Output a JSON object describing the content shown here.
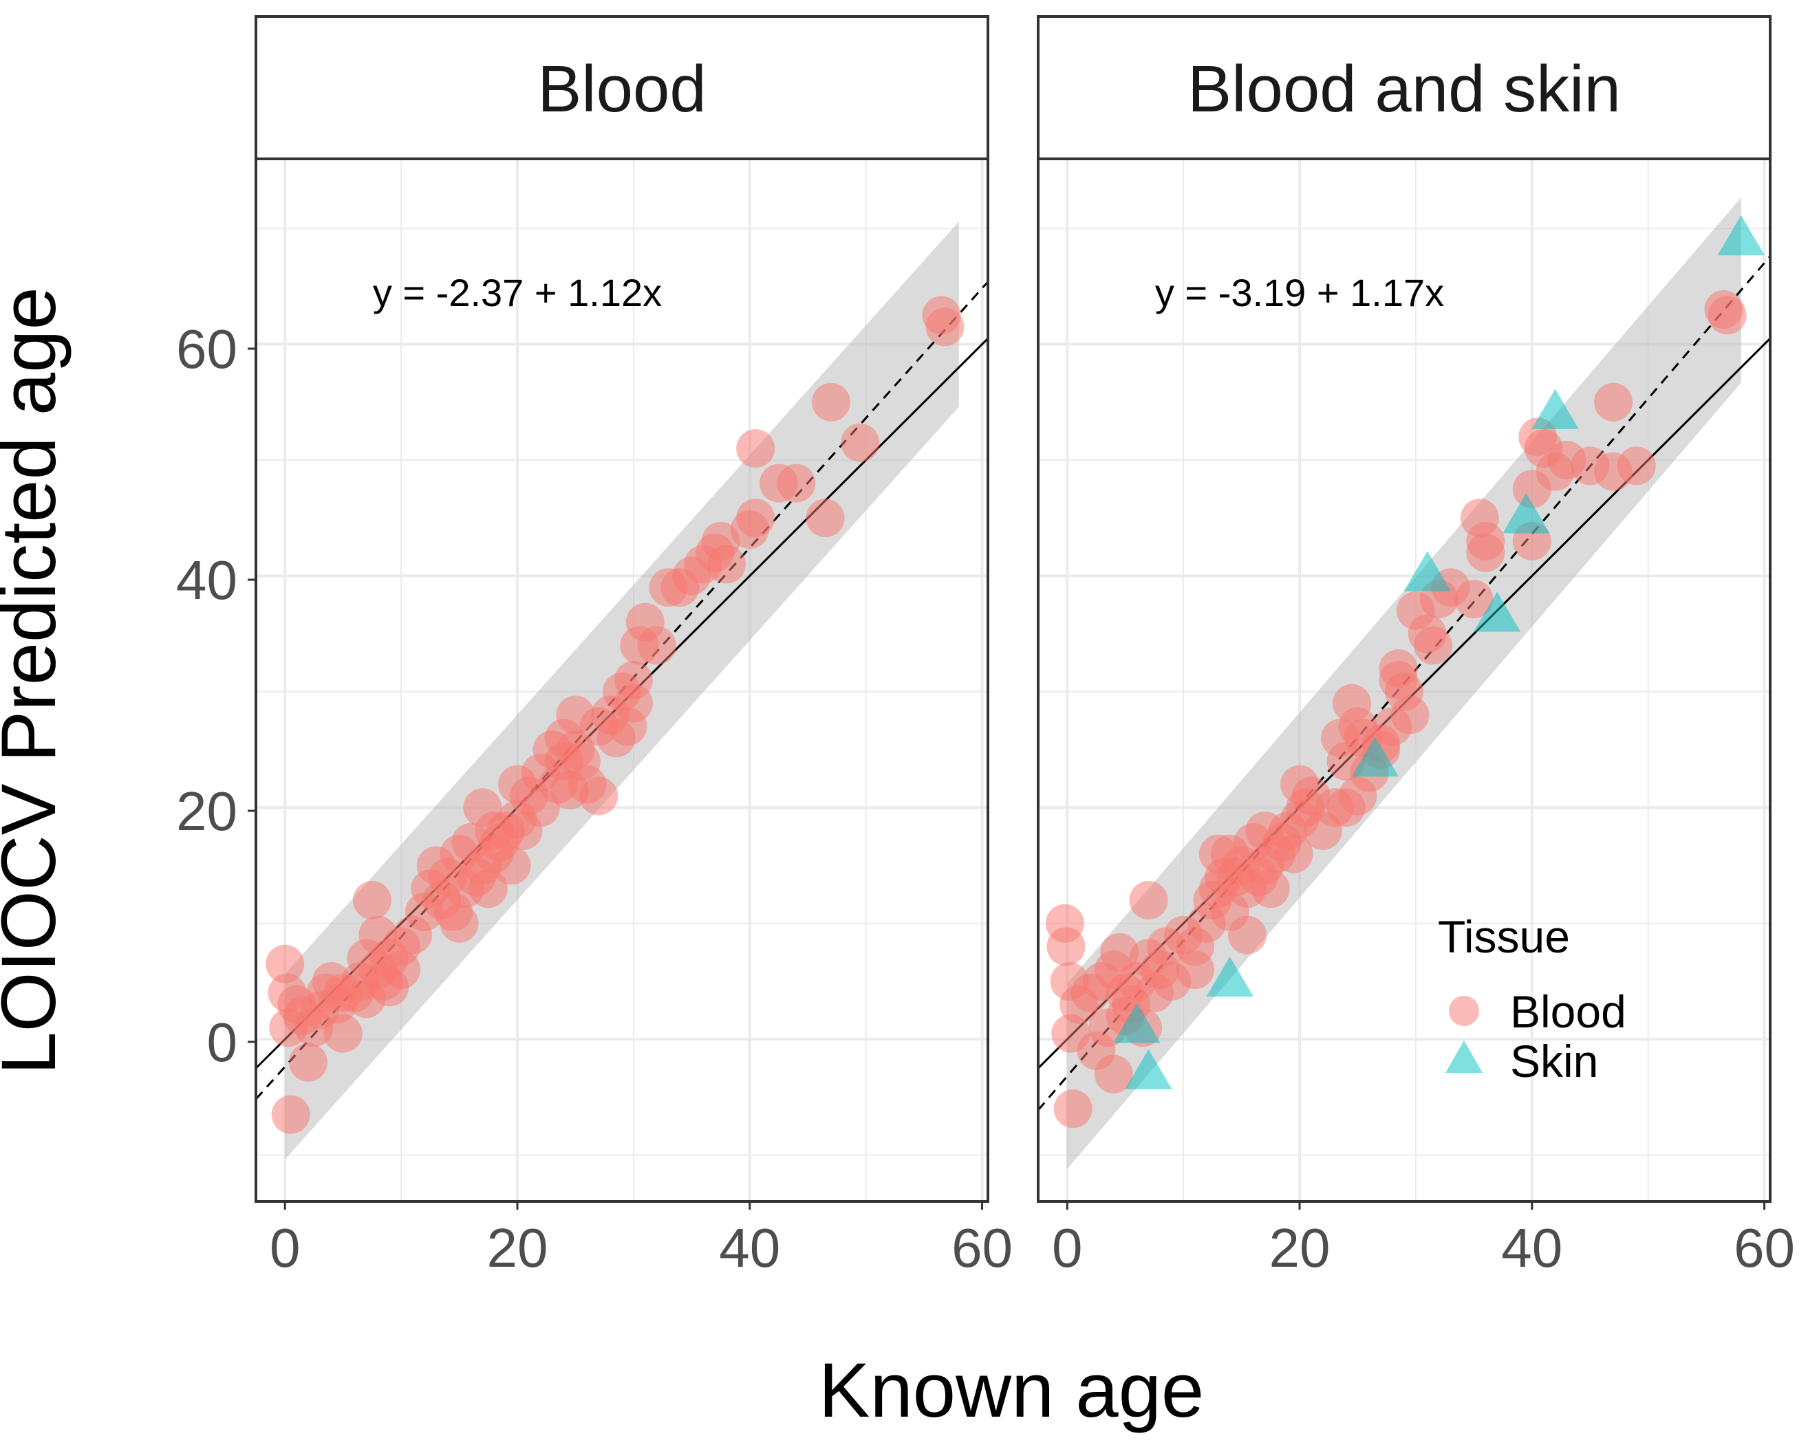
{
  "chart_data": {
    "type": "scatter",
    "xlabel": "Known age",
    "ylabel": "LOIOCV Predicted age",
    "xlim": [
      -2.5,
      60.5
    ],
    "ylim": [
      -14,
      76
    ],
    "xticks": [
      "0",
      "20",
      "40",
      "60"
    ],
    "yticks": [
      "0",
      "20",
      "40",
      "60"
    ],
    "grid": true,
    "legend": {
      "title": "Tissue",
      "position": "inside-bottom-right of right panel",
      "entries": [
        {
          "name": "Blood",
          "shape": "circle",
          "color": "#F8766D"
        },
        {
          "name": "Skin",
          "shape": "triangle",
          "color": "#00BFC4"
        }
      ]
    },
    "colors": {
      "blood": "#F8766D",
      "skin": "#00BFC4",
      "ribbon": "#bebebe"
    },
    "panels": [
      {
        "strip": "Blood",
        "equation": "y = -2.37 + 1.12x",
        "fit": {
          "intercept": -2.37,
          "slope": 1.12,
          "line": "dashed"
        },
        "identity": {
          "intercept": 0,
          "slope": 1,
          "line": "solid"
        },
        "ribbon_halfwidth": 8,
        "x_range": [
          0,
          58
        ],
        "series": [
          {
            "name": "Blood",
            "shape": "circle",
            "points": [
              [
                0,
                6.5
              ],
              [
                0.2,
                4
              ],
              [
                0.3,
                1
              ],
              [
                0.5,
                -6.5
              ],
              [
                1,
                3
              ],
              [
                1.5,
                2
              ],
              [
                2,
                -2
              ],
              [
                2.5,
                1
              ],
              [
                3,
                2.5
              ],
              [
                3.5,
                4
              ],
              [
                4,
                5
              ],
              [
                4.5,
                3
              ],
              [
                5,
                4
              ],
              [
                5,
                0.5
              ],
              [
                6,
                4
              ],
              [
                6.5,
                5
              ],
              [
                7,
                3.5
              ],
              [
                7,
                7
              ],
              [
                7.5,
                12
              ],
              [
                8,
                6
              ],
              [
                8,
                9
              ],
              [
                8.5,
                5
              ],
              [
                9,
                7
              ],
              [
                9,
                4.5
              ],
              [
                10,
                6
              ],
              [
                10,
                8
              ],
              [
                11,
                9
              ],
              [
                12,
                11
              ],
              [
                12.5,
                13
              ],
              [
                13,
                15
              ],
              [
                13.5,
                12
              ],
              [
                14,
                14
              ],
              [
                14.5,
                11
              ],
              [
                15,
                16
              ],
              [
                15,
                10
              ],
              [
                15.5,
                13
              ],
              [
                16,
                17
              ],
              [
                16.5,
                14
              ],
              [
                17,
                20
              ],
              [
                17,
                15
              ],
              [
                17.5,
                13
              ],
              [
                18,
                18
              ],
              [
                18,
                16
              ],
              [
                18.5,
                17
              ],
              [
                19,
                18
              ],
              [
                19.5,
                15
              ],
              [
                20,
                19
              ],
              [
                20,
                22
              ],
              [
                20.5,
                18
              ],
              [
                21,
                21
              ],
              [
                22,
                20
              ],
              [
                22,
                23
              ],
              [
                23,
                25
              ],
              [
                23.5,
                22
              ],
              [
                24,
                26
              ],
              [
                24,
                24
              ],
              [
                24.5,
                21.5
              ],
              [
                25,
                28
              ],
              [
                25,
                25
              ],
              [
                25.5,
                24
              ],
              [
                26,
                22
              ],
              [
                27,
                21
              ],
              [
                27,
                27
              ],
              [
                28,
                28
              ],
              [
                28.5,
                26
              ],
              [
                29,
                30
              ],
              [
                29.5,
                27
              ],
              [
                30,
                31
              ],
              [
                30,
                29
              ],
              [
                30.5,
                34
              ],
              [
                31,
                36
              ],
              [
                32,
                34
              ],
              [
                33,
                39
              ],
              [
                34,
                39
              ],
              [
                35,
                40
              ],
              [
                36,
                41
              ],
              [
                37,
                42
              ],
              [
                37.5,
                43
              ],
              [
                38,
                41
              ],
              [
                40,
                44
              ],
              [
                40.5,
                45
              ],
              [
                40.5,
                51
              ],
              [
                42.5,
                48
              ],
              [
                44,
                48
              ],
              [
                46.5,
                45
              ],
              [
                47,
                55
              ],
              [
                49.5,
                51.5
              ],
              [
                56.5,
                62.5
              ],
              [
                56.8,
                61.5
              ]
            ]
          }
        ]
      },
      {
        "strip": "Blood and skin",
        "equation": "y = -3.19 + 1.17x",
        "fit": {
          "intercept": -3.19,
          "slope": 1.17,
          "line": "dashed"
        },
        "identity": {
          "intercept": 0,
          "slope": 1,
          "line": "solid"
        },
        "ribbon_halfwidth": 8,
        "x_range": [
          0,
          58
        ],
        "series": [
          {
            "name": "Blood",
            "shape": "circle",
            "points": [
              [
                -0.2,
                10
              ],
              [
                -0.1,
                8
              ],
              [
                0.2,
                5
              ],
              [
                0.3,
                0.5
              ],
              [
                0.5,
                -6
              ],
              [
                1,
                3
              ],
              [
                2,
                4
              ],
              [
                2.5,
                -1
              ],
              [
                3,
                5
              ],
              [
                3.5,
                1
              ],
              [
                4,
                6
              ],
              [
                4,
                -3
              ],
              [
                4.5,
                7.5
              ],
              [
                5,
                4
              ],
              [
                5,
                2
              ],
              [
                5.5,
                3
              ],
              [
                6,
                5
              ],
              [
                6.5,
                1
              ],
              [
                7,
                7
              ],
              [
                7,
                12
              ],
              [
                7.5,
                4
              ],
              [
                8,
                6
              ],
              [
                8.5,
                8
              ],
              [
                9,
                5
              ],
              [
                10,
                9
              ],
              [
                11,
                8
              ],
              [
                11,
                6
              ],
              [
                12,
                10
              ],
              [
                12.5,
                12
              ],
              [
                13,
                16
              ],
              [
                13,
                13
              ],
              [
                13.5,
                14
              ],
              [
                14,
                16
              ],
              [
                14,
                11
              ],
              [
                14.5,
                14
              ],
              [
                15,
                15
              ],
              [
                15.5,
                9
              ],
              [
                15.5,
                13
              ],
              [
                16,
                17
              ],
              [
                16.5,
                14
              ],
              [
                17,
                18
              ],
              [
                17,
                15
              ],
              [
                17.5,
                13
              ],
              [
                18,
                16
              ],
              [
                18.5,
                17
              ],
              [
                19,
                18
              ],
              [
                19.5,
                16
              ],
              [
                20,
                22
              ],
              [
                20,
                19
              ],
              [
                20.5,
                20
              ],
              [
                21,
                21
              ],
              [
                22,
                18
              ],
              [
                23,
                20
              ],
              [
                23.5,
                26
              ],
              [
                24,
                24
              ],
              [
                24,
                20
              ],
              [
                24.5,
                29
              ],
              [
                25,
                27
              ],
              [
                25,
                21
              ],
              [
                25.5,
                26
              ],
              [
                26,
                23
              ],
              [
                27,
                25
              ],
              [
                27,
                25.5
              ],
              [
                28,
                27
              ],
              [
                28.5,
                32
              ],
              [
                28.5,
                31
              ],
              [
                29,
                30
              ],
              [
                29.5,
                28
              ],
              [
                30,
                37
              ],
              [
                31,
                35
              ],
              [
                31.5,
                34
              ],
              [
                32,
                38
              ],
              [
                33,
                39
              ],
              [
                35,
                38
              ],
              [
                35.5,
                45
              ],
              [
                36,
                43
              ],
              [
                36,
                42
              ],
              [
                40,
                43
              ],
              [
                40,
                47.5
              ],
              [
                40.5,
                52
              ],
              [
                41,
                51
              ],
              [
                42,
                49
              ],
              [
                43,
                50
              ],
              [
                45,
                49.5
              ],
              [
                47,
                49
              ],
              [
                47,
                55
              ],
              [
                49,
                49.5
              ],
              [
                56.5,
                63
              ],
              [
                56.8,
                62.5
              ]
            ]
          },
          {
            "name": "Skin",
            "shape": "triangle",
            "points": [
              [
                6,
                1
              ],
              [
                7,
                -3
              ],
              [
                14,
                5
              ],
              [
                26.5,
                24
              ],
              [
                31,
                40
              ],
              [
                37,
                36.5
              ],
              [
                39.5,
                45
              ],
              [
                42,
                54
              ],
              [
                58,
                69
              ]
            ]
          }
        ]
      }
    ]
  }
}
